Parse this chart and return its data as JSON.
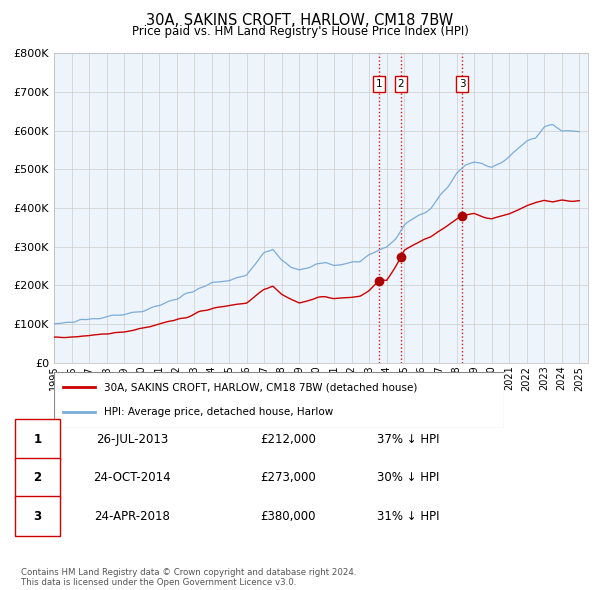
{
  "title": "30A, SAKINS CROFT, HARLOW, CM18 7BW",
  "subtitle": "Price paid vs. HM Land Registry's House Price Index (HPI)",
  "ylim": [
    0,
    800000
  ],
  "yticks": [
    0,
    100000,
    200000,
    300000,
    400000,
    500000,
    600000,
    700000,
    800000
  ],
  "xlim": [
    1995,
    2025.5
  ],
  "line1_color": "#cc0000",
  "line2_color": "#7aaddb",
  "transaction_color": "#aa0000",
  "vline_color": "#cc0000",
  "grid_color": "#cccccc",
  "bg_color": "#eef4fb",
  "transactions": [
    {
      "date_year": 2013.57,
      "price": 212000,
      "label": "1"
    },
    {
      "date_year": 2014.82,
      "price": 273000,
      "label": "2"
    },
    {
      "date_year": 2018.32,
      "price": 380000,
      "label": "3"
    }
  ],
  "table_rows": [
    {
      "num": "1",
      "date": "26-JUL-2013",
      "price": "£212,000",
      "hpi": "37% ↓ HPI"
    },
    {
      "num": "2",
      "date": "24-OCT-2014",
      "price": "£273,000",
      "hpi": "30% ↓ HPI"
    },
    {
      "num": "3",
      "date": "24-APR-2018",
      "price": "£380,000",
      "hpi": "31% ↓ HPI"
    }
  ],
  "footnote": "Contains HM Land Registry data © Crown copyright and database right 2024.\nThis data is licensed under the Open Government Licence v3.0.",
  "legend_entries": [
    "30A, SAKINS CROFT, HARLOW, CM18 7BW (detached house)",
    "HPI: Average price, detached house, Harlow"
  ]
}
